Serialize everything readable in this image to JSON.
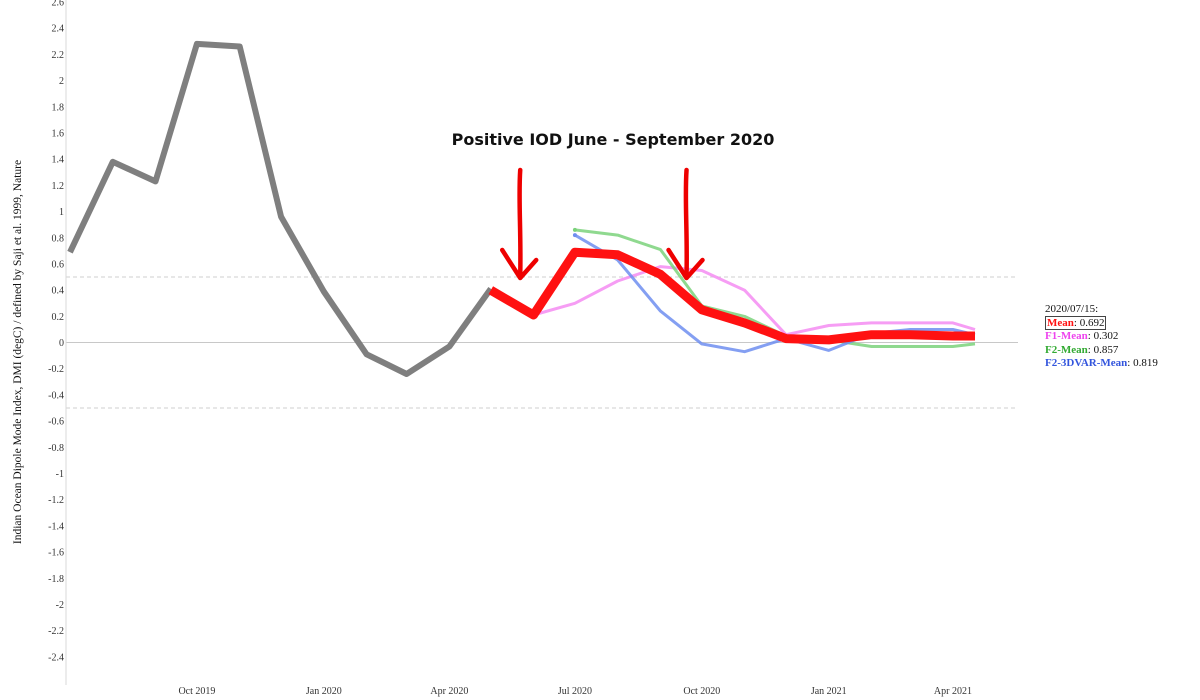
{
  "chart_data": {
    "type": "line",
    "ylabel": "Indian Ocean Dipole Mode Index, DMI (degC) / defined by Saji et al. 1999, Nature",
    "ylim": [
      -2.5,
      2.6
    ],
    "y_ticks": [
      2.6,
      2.4,
      2.2,
      2,
      1.8,
      1.6,
      1.4,
      1.2,
      1,
      0.8,
      0.6,
      0.4,
      0.2,
      0,
      -0.2,
      -0.4,
      -0.6,
      -0.8,
      -1,
      -1.2,
      -1.4,
      -1.6,
      -1.8,
      -2,
      -2.2,
      -2.4
    ],
    "x_ticks": [
      {
        "label": "Oct 2019",
        "date": "2019-10-15"
      },
      {
        "label": "Jan 2020",
        "date": "2020-01-15"
      },
      {
        "label": "Apr 2020",
        "date": "2020-04-15"
      },
      {
        "label": "Jul 2020",
        "date": "2020-07-15"
      },
      {
        "label": "Oct 2020",
        "date": "2020-10-15"
      },
      {
        "label": "Jan 2021",
        "date": "2021-01-15"
      },
      {
        "label": "Apr 2021",
        "date": "2021-04-15"
      }
    ],
    "xlim": [
      "2019-07-15",
      "2021-05-01"
    ],
    "reference_lines": [
      0.5,
      -0.5
    ],
    "series": [
      {
        "key": "observed",
        "color": "#7f7f7f",
        "width": "thick",
        "points": [
          [
            "2019-07-15",
            0.69
          ],
          [
            "2019-08-15",
            1.38
          ],
          [
            "2019-09-15",
            1.23
          ],
          [
            "2019-10-15",
            2.28
          ],
          [
            "2019-11-15",
            2.26
          ],
          [
            "2019-12-15",
            0.96
          ],
          [
            "2020-01-15",
            0.39
          ],
          [
            "2020-02-15",
            -0.09
          ],
          [
            "2020-03-15",
            -0.24
          ],
          [
            "2020-04-15",
            -0.03
          ],
          [
            "2020-05-15",
            0.41
          ]
        ]
      },
      {
        "key": "f1",
        "color": "#f58cf2",
        "width": "thin",
        "points": [
          [
            "2020-06-15",
            0.21
          ],
          [
            "2020-07-15",
            0.3
          ],
          [
            "2020-08-15",
            0.47
          ],
          [
            "2020-09-15",
            0.58
          ],
          [
            "2020-10-15",
            0.55
          ],
          [
            "2020-11-15",
            0.4
          ],
          [
            "2020-12-15",
            0.06
          ],
          [
            "2021-01-15",
            0.13
          ],
          [
            "2021-02-15",
            0.15
          ],
          [
            "2021-03-15",
            0.15
          ],
          [
            "2021-04-15",
            0.15
          ],
          [
            "2021-05-01",
            0.1
          ]
        ]
      },
      {
        "key": "f2",
        "color": "#7bd27b",
        "width": "thin",
        "points": [
          [
            "2020-07-15",
            0.86
          ],
          [
            "2020-08-15",
            0.82
          ],
          [
            "2020-09-15",
            0.71
          ],
          [
            "2020-10-15",
            0.28
          ],
          [
            "2020-11-15",
            0.2
          ],
          [
            "2020-12-15",
            0.05
          ],
          [
            "2021-01-15",
            0.02
          ],
          [
            "2021-02-15",
            -0.03
          ],
          [
            "2021-03-15",
            -0.03
          ],
          [
            "2021-04-15",
            -0.03
          ],
          [
            "2021-05-01",
            -0.01
          ]
        ]
      },
      {
        "key": "f2_3dvar",
        "color": "#6f8ef0",
        "width": "thin",
        "points": [
          [
            "2020-07-15",
            0.82
          ],
          [
            "2020-08-15",
            0.63
          ],
          [
            "2020-09-15",
            0.24
          ],
          [
            "2020-10-15",
            -0.01
          ],
          [
            "2020-11-15",
            -0.07
          ],
          [
            "2020-12-15",
            0.03
          ],
          [
            "2021-01-15",
            -0.06
          ],
          [
            "2021-02-15",
            0.07
          ],
          [
            "2021-03-15",
            0.1
          ],
          [
            "2021-04-15",
            0.1
          ],
          [
            "2021-05-01",
            0.06
          ]
        ]
      },
      {
        "key": "mean",
        "color": "#ff1111",
        "width": "thickest",
        "points": [
          [
            "2020-05-15",
            0.4
          ],
          [
            "2020-06-15",
            0.21
          ],
          [
            "2020-07-15",
            0.69
          ],
          [
            "2020-08-15",
            0.67
          ],
          [
            "2020-09-15",
            0.52
          ],
          [
            "2020-10-15",
            0.25
          ],
          [
            "2020-11-15",
            0.15
          ],
          [
            "2020-12-15",
            0.03
          ],
          [
            "2021-01-15",
            0.02
          ],
          [
            "2021-02-15",
            0.06
          ],
          [
            "2021-03-15",
            0.06
          ],
          [
            "2021-04-15",
            0.05
          ],
          [
            "2021-05-01",
            0.05
          ]
        ]
      }
    ],
    "annotation": {
      "text": "Positive IOD June - September 2020",
      "arrows_at": [
        "2020-06-01",
        "2020-10-01"
      ]
    },
    "legend": {
      "placement": "right",
      "date": "2020/07/15:",
      "entries": [
        {
          "name": "Mean",
          "value": "0.692",
          "color": "#ff1111",
          "highlighted": true
        },
        {
          "name": "F1-Mean",
          "value": "0.302",
          "color": "#ee44ee",
          "highlighted": false
        },
        {
          "name": "F2-Mean",
          "value": "0.857",
          "color": "#33aa33",
          "highlighted": false
        },
        {
          "name": "F2-3DVAR-Mean",
          "value": "0.819",
          "color": "#3355dd",
          "highlighted": false
        }
      ]
    }
  }
}
